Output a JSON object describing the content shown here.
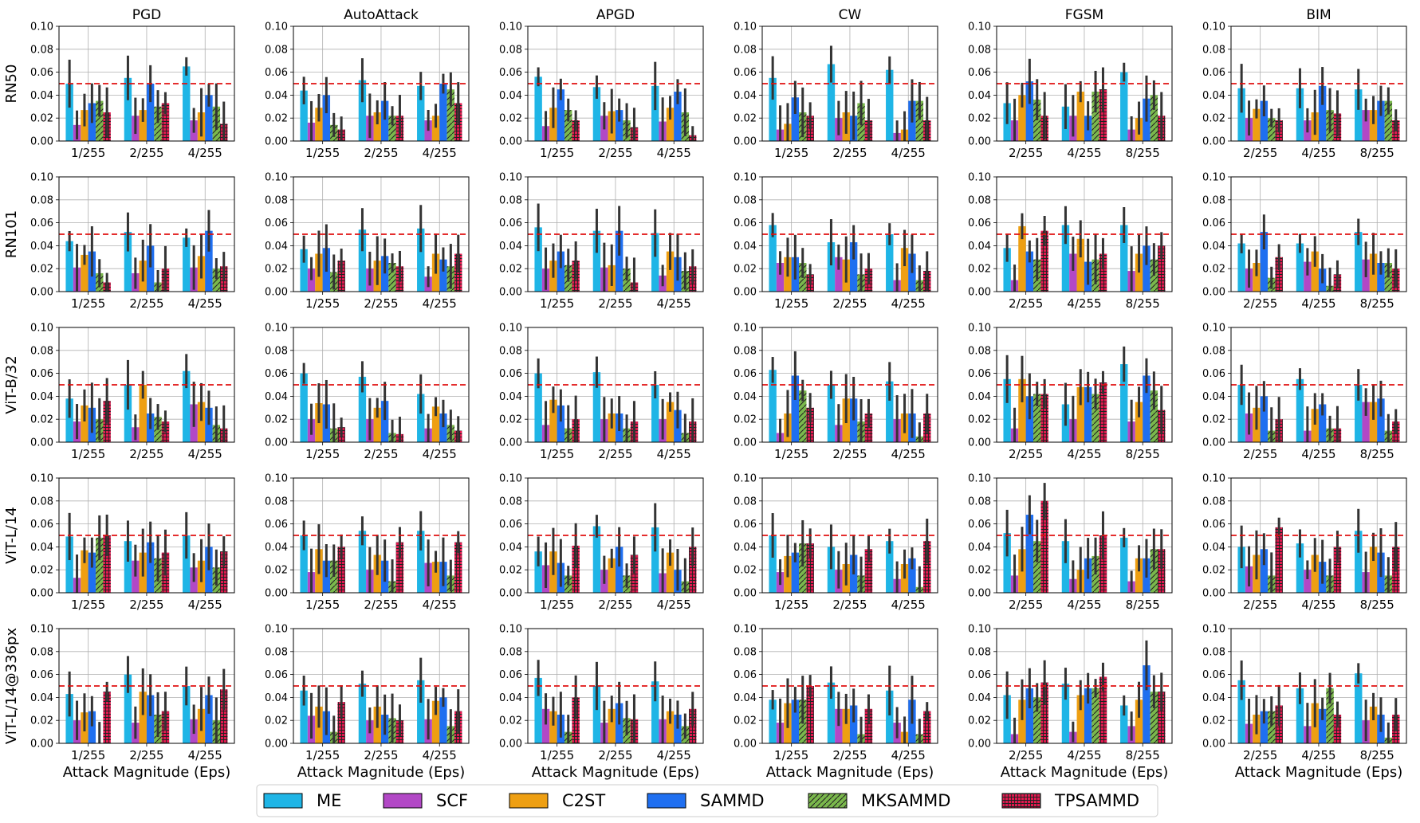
{
  "colors": {
    "ME": "#1fb5e6",
    "SCF": "#b248c6",
    "C2ST": "#ee9f12",
    "SAMMD": "#1f6ff0",
    "MKSAMMD": "#7ab84c",
    "TPSAMMD": "#e0194f",
    "threshold": "#e01010",
    "errorbar": "#333333",
    "grid": "#b0b0b0"
  },
  "chart_data": {
    "type": "bar",
    "threshold": 0.05,
    "ylim": [
      0,
      0.1
    ],
    "yticks": [
      "0.00",
      "0.02",
      "0.04",
      "0.06",
      "0.08",
      "0.10"
    ],
    "xlabel": "Attack Magnitude (Eps)",
    "legend": {
      "position": "bottom-center",
      "entries": [
        "ME",
        "SCF",
        "C2ST",
        "SAMMD",
        "MKSAMMD",
        "TPSAMMD"
      ]
    },
    "methods": [
      "ME",
      "SCF",
      "C2ST",
      "SAMMD",
      "MKSAMMD",
      "TPSAMMD"
    ],
    "attacks": [
      "PGD",
      "AutoAttack",
      "APGD",
      "CW",
      "FGSM",
      "BIM"
    ],
    "models": [
      "RN50",
      "RN101",
      "ViT-B/32",
      "ViT-L/14",
      "ViT-L/14@336px"
    ],
    "eps_labels": {
      "PGD": [
        "1/255",
        "2/255",
        "4/255"
      ],
      "AutoAttack": [
        "1/255",
        "2/255",
        "4/255"
      ],
      "APGD": [
        "1/255",
        "2/255",
        "4/255"
      ],
      "CW": [
        "1/255",
        "2/255",
        "4/255"
      ],
      "FGSM": [
        "2/255",
        "4/255",
        "8/255"
      ],
      "BIM": [
        "2/255",
        "4/255",
        "8/255"
      ]
    },
    "panels": [
      [
        [
          [
            0.05,
            0.014,
            0.027,
            0.033,
            0.035,
            0.025
          ],
          [
            0.055,
            0.022,
            0.027,
            0.05,
            0.03,
            0.033
          ],
          [
            0.065,
            0.018,
            0.025,
            0.04,
            0.03,
            0.015
          ]
        ],
        [
          [
            0.044,
            0.016,
            0.029,
            0.04,
            0.014,
            0.01
          ],
          [
            0.053,
            0.022,
            0.025,
            0.035,
            0.022,
            0.022
          ],
          [
            0.048,
            0.018,
            0.022,
            0.05,
            0.045,
            0.033
          ]
        ],
        [
          [
            0.056,
            0.013,
            0.029,
            0.045,
            0.027,
            0.018
          ],
          [
            0.047,
            0.022,
            0.026,
            0.027,
            0.018,
            0.012
          ],
          [
            0.048,
            0.017,
            0.029,
            0.043,
            0.025,
            0.005
          ]
        ],
        [
          [
            0.055,
            0.01,
            0.015,
            0.038,
            0.025,
            0.022
          ],
          [
            0.067,
            0.02,
            0.025,
            0.022,
            0.033,
            0.018
          ],
          [
            0.062,
            0.007,
            0.01,
            0.035,
            0.035,
            0.018
          ]
        ],
        [
          [
            0.033,
            0.018,
            0.04,
            0.052,
            0.036,
            0.022
          ],
          [
            0.03,
            0.022,
            0.043,
            0.022,
            0.043,
            0.045
          ],
          [
            0.06,
            0.01,
            0.02,
            0.037,
            0.04,
            0.022
          ]
        ],
        [
          [
            0.046,
            0.02,
            0.028,
            0.035,
            0.02,
            0.018
          ],
          [
            0.046,
            0.018,
            0.025,
            0.048,
            0.027,
            0.024
          ],
          [
            0.045,
            0.027,
            0.027,
            0.035,
            0.035,
            0.018
          ]
        ]
      ],
      [
        [
          [
            0.044,
            0.021,
            0.032,
            0.035,
            0.016,
            0.008
          ],
          [
            0.052,
            0.016,
            0.027,
            0.04,
            0.008,
            0.02
          ],
          [
            0.047,
            0.021,
            0.031,
            0.053,
            0.02,
            0.022
          ]
        ],
        [
          [
            0.037,
            0.02,
            0.033,
            0.038,
            0.017,
            0.027
          ],
          [
            0.054,
            0.02,
            0.027,
            0.031,
            0.025,
            0.022
          ],
          [
            0.055,
            0.013,
            0.033,
            0.028,
            0.022,
            0.033
          ]
        ],
        [
          [
            0.056,
            0.02,
            0.027,
            0.035,
            0.023,
            0.027
          ],
          [
            0.053,
            0.021,
            0.023,
            0.053,
            0.02,
            0.008
          ],
          [
            0.051,
            0.014,
            0.035,
            0.03,
            0.018,
            0.022
          ]
        ],
        [
          [
            0.058,
            0.025,
            0.03,
            0.03,
            0.025,
            0.015
          ],
          [
            0.043,
            0.03,
            0.028,
            0.043,
            0.015,
            0.02
          ],
          [
            0.05,
            0.01,
            0.038,
            0.033,
            0.01,
            0.018
          ]
        ],
        [
          [
            0.038,
            0.01,
            0.057,
            0.035,
            0.028,
            0.053
          ],
          [
            0.058,
            0.033,
            0.046,
            0.026,
            0.028,
            0.033
          ],
          [
            0.058,
            0.018,
            0.033,
            0.04,
            0.028,
            0.04
          ]
        ],
        [
          [
            0.042,
            0.02,
            0.025,
            0.052,
            0.012,
            0.03
          ],
          [
            0.042,
            0.026,
            0.035,
            0.02,
            0.005,
            0.015
          ],
          [
            0.052,
            0.028,
            0.033,
            0.025,
            0.025,
            0.02
          ]
        ]
      ],
      [
        [
          [
            0.038,
            0.018,
            0.032,
            0.03,
            0.02,
            0.036
          ],
          [
            0.05,
            0.013,
            0.05,
            0.025,
            0.022,
            0.018
          ],
          [
            0.062,
            0.033,
            0.035,
            0.03,
            0.015,
            0.012
          ]
        ],
        [
          [
            0.06,
            0.02,
            0.034,
            0.033,
            0.012,
            0.013
          ],
          [
            0.057,
            0.02,
            0.03,
            0.036,
            0.008,
            0.007
          ],
          [
            0.042,
            0.012,
            0.031,
            0.025,
            0.015,
            0.01
          ]
        ],
        [
          [
            0.06,
            0.015,
            0.037,
            0.032,
            0.012,
            0.02
          ],
          [
            0.061,
            0.02,
            0.025,
            0.025,
            0.012,
            0.018
          ],
          [
            0.05,
            0.02,
            0.035,
            0.028,
            0.008,
            0.018
          ]
        ],
        [
          [
            0.063,
            0.008,
            0.025,
            0.058,
            0.045,
            0.03
          ],
          [
            0.05,
            0.015,
            0.038,
            0.038,
            0.018,
            0.025
          ],
          [
            0.053,
            0.02,
            0.025,
            0.025,
            0.005,
            0.025
          ]
        ],
        [
          [
            0.055,
            0.012,
            0.055,
            0.04,
            0.042,
            0.042
          ],
          [
            0.033,
            0.02,
            0.048,
            0.048,
            0.042,
            0.052
          ],
          [
            0.068,
            0.018,
            0.035,
            0.058,
            0.045,
            0.028
          ]
        ],
        [
          [
            0.05,
            0.025,
            0.03,
            0.04,
            0.01,
            0.02
          ],
          [
            0.055,
            0.01,
            0.029,
            0.033,
            0.012,
            0.012
          ],
          [
            0.05,
            0.035,
            0.035,
            0.038,
            0.01,
            0.018
          ]
        ]
      ],
      [
        [
          [
            0.049,
            0.013,
            0.037,
            0.035,
            0.048,
            0.05
          ],
          [
            0.045,
            0.028,
            0.035,
            0.044,
            0.03,
            0.035
          ],
          [
            0.05,
            0.022,
            0.028,
            0.04,
            0.022,
            0.036
          ]
        ],
        [
          [
            0.05,
            0.018,
            0.038,
            0.028,
            0.028,
            0.04
          ],
          [
            0.054,
            0.02,
            0.033,
            0.028,
            0.01,
            0.044
          ],
          [
            0.054,
            0.026,
            0.027,
            0.027,
            0.015,
            0.044
          ]
        ],
        [
          [
            0.036,
            0.024,
            0.036,
            0.026,
            0.015,
            0.041
          ],
          [
            0.058,
            0.02,
            0.03,
            0.04,
            0.015,
            0.033
          ],
          [
            0.057,
            0.017,
            0.035,
            0.02,
            0.01,
            0.04
          ]
        ],
        [
          [
            0.05,
            0.018,
            0.032,
            0.035,
            0.043,
            0.043
          ],
          [
            0.04,
            0.02,
            0.025,
            0.033,
            0.015,
            0.038
          ],
          [
            0.045,
            0.012,
            0.025,
            0.03,
            0.005,
            0.045
          ]
        ],
        [
          [
            0.052,
            0.015,
            0.038,
            0.068,
            0.045,
            0.08
          ],
          [
            0.045,
            0.012,
            0.02,
            0.03,
            0.032,
            0.05
          ],
          [
            0.048,
            0.01,
            0.03,
            0.03,
            0.038,
            0.038
          ]
        ],
        [
          [
            0.04,
            0.023,
            0.033,
            0.038,
            0.015,
            0.057
          ],
          [
            0.043,
            0.02,
            0.033,
            0.027,
            0.015,
            0.04
          ],
          [
            0.054,
            0.018,
            0.04,
            0.035,
            0.015,
            0.04
          ]
        ]
      ],
      [
        [
          [
            0.043,
            0.02,
            0.027,
            0.028,
            0.0,
            0.045
          ],
          [
            0.06,
            0.018,
            0.045,
            0.042,
            0.025,
            0.028
          ],
          [
            0.05,
            0.021,
            0.03,
            0.042,
            0.02,
            0.047
          ]
        ],
        [
          [
            0.046,
            0.024,
            0.032,
            0.028,
            0.01,
            0.036
          ],
          [
            0.052,
            0.02,
            0.032,
            0.025,
            0.022,
            0.02
          ],
          [
            0.055,
            0.021,
            0.037,
            0.04,
            0.015,
            0.028
          ]
        ],
        [
          [
            0.057,
            0.03,
            0.028,
            0.025,
            0.01,
            0.04
          ],
          [
            0.05,
            0.018,
            0.03,
            0.035,
            0.022,
            0.021
          ],
          [
            0.054,
            0.021,
            0.028,
            0.025,
            0.015,
            0.03
          ]
        ],
        [
          [
            0.038,
            0.018,
            0.035,
            0.038,
            0.038,
            0.05
          ],
          [
            0.053,
            0.03,
            0.03,
            0.033,
            0.008,
            0.03
          ],
          [
            0.046,
            0.018,
            0.01,
            0.038,
            0.008,
            0.028
          ]
        ],
        [
          [
            0.042,
            0.008,
            0.038,
            0.048,
            0.04,
            0.053
          ],
          [
            0.052,
            0.01,
            0.042,
            0.048,
            0.048,
            0.058
          ],
          [
            0.033,
            0.015,
            0.038,
            0.068,
            0.045,
            0.045
          ]
        ],
        [
          [
            0.055,
            0.017,
            0.025,
            0.028,
            0.028,
            0.033
          ],
          [
            0.048,
            0.015,
            0.035,
            0.03,
            0.048,
            0.025
          ],
          [
            0.061,
            0.02,
            0.032,
            0.025,
            0.005,
            0.025
          ]
        ]
      ]
    ]
  }
}
